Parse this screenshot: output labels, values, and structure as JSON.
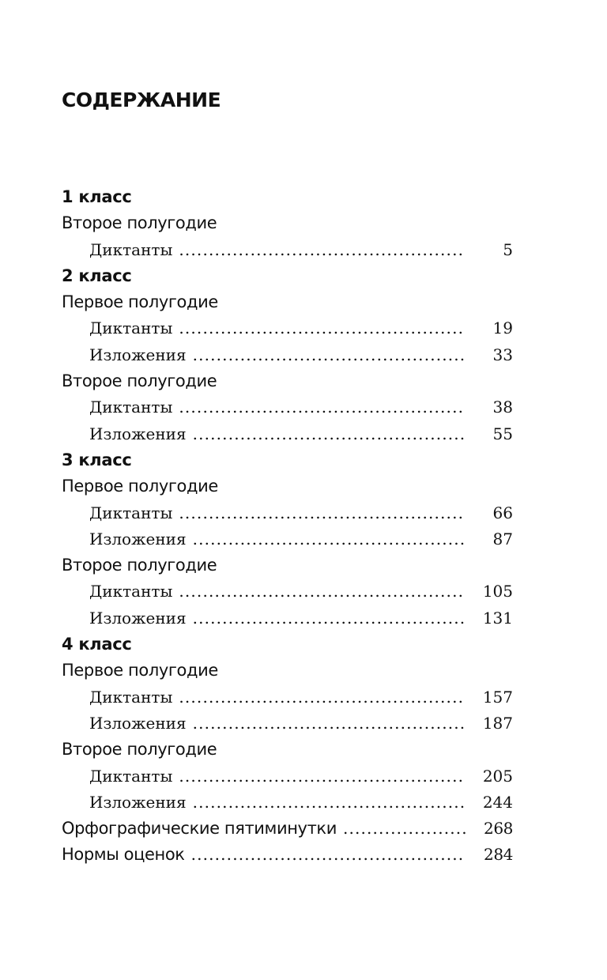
{
  "title": "СОДЕРЖАНИЕ",
  "entries": [
    {
      "type": "heading",
      "label": "1 класс"
    },
    {
      "type": "section",
      "label": "Второе полугодие"
    },
    {
      "type": "item",
      "label": "Диктанты",
      "page": "5"
    },
    {
      "type": "heading",
      "label": "2 класс"
    },
    {
      "type": "section",
      "label": "Первое полугодие"
    },
    {
      "type": "item",
      "label": "Диктанты",
      "page": "19"
    },
    {
      "type": "item",
      "label": "Изложения",
      "page": "33"
    },
    {
      "type": "section",
      "label": "Второе полугодие"
    },
    {
      "type": "item",
      "label": "Диктанты",
      "page": "38"
    },
    {
      "type": "item",
      "label": "Изложения",
      "page": "55"
    },
    {
      "type": "heading",
      "label": "3 класс"
    },
    {
      "type": "section",
      "label": "Первое полугодие"
    },
    {
      "type": "item",
      "label": "Диктанты",
      "page": "66"
    },
    {
      "type": "item",
      "label": "Изложения",
      "page": "87"
    },
    {
      "type": "section",
      "label": "Второе полугодие"
    },
    {
      "type": "item",
      "label": "Диктанты",
      "page": "105"
    },
    {
      "type": "item",
      "label": "Изложения",
      "page": "131"
    },
    {
      "type": "heading",
      "label": "4 класс"
    },
    {
      "type": "section",
      "label": "Первое полугодие"
    },
    {
      "type": "item",
      "label": "Диктанты",
      "page": "157"
    },
    {
      "type": "item",
      "label": "Изложения",
      "page": "187"
    },
    {
      "type": "section",
      "label": "Второе полугодие"
    },
    {
      "type": "item",
      "label": "Диктанты",
      "page": "205"
    },
    {
      "type": "item",
      "label": "Изложения",
      "page": "244"
    },
    {
      "type": "section",
      "label": "Орфографические пятиминутки",
      "page": "268"
    },
    {
      "type": "section",
      "label": "Нормы оценок",
      "page": "284"
    }
  ]
}
